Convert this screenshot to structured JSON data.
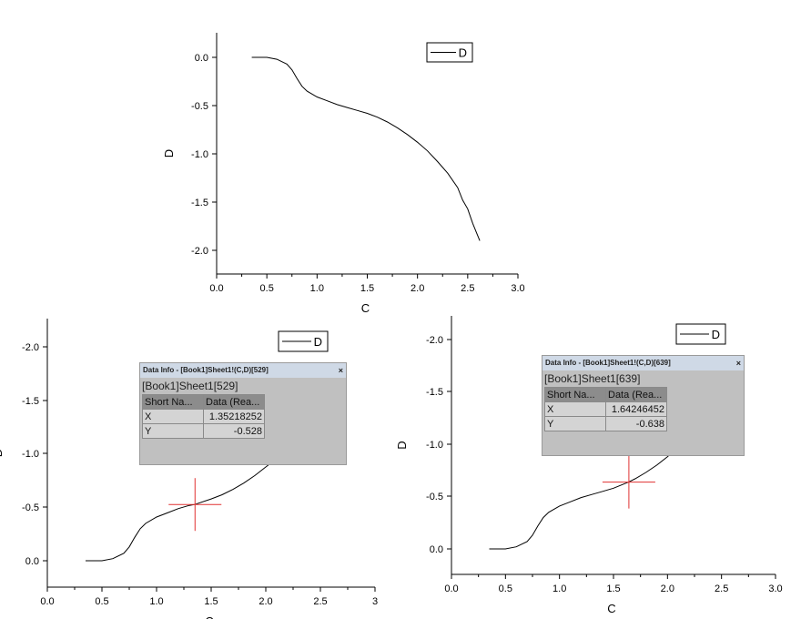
{
  "chart_data": [
    {
      "type": "line",
      "xlabel": "C",
      "ylabel": "D",
      "xlim": [
        0,
        3
      ],
      "ylim": [
        -2.25,
        0.25
      ],
      "xticks": [
        "0.0",
        "0.5",
        "1.0",
        "1.5",
        "2.0",
        "2.5",
        "3.0"
      ],
      "yticks": [
        "0.0",
        "-0.5",
        "-1.0",
        "-1.5",
        "-2.0"
      ],
      "legend": "D",
      "legend_position": "top-right",
      "series": [
        {
          "name": "D",
          "x": [
            0.35,
            0.5,
            0.6,
            0.7,
            0.75,
            0.8,
            0.85,
            0.9,
            1.0,
            1.1,
            1.2,
            1.3,
            1.4,
            1.5,
            1.6,
            1.7,
            1.8,
            1.9,
            2.0,
            2.1,
            2.2,
            2.3,
            2.4,
            2.45,
            2.5,
            2.55,
            2.6,
            2.62
          ],
          "y": [
            0.0,
            0.0,
            -0.02,
            -0.07,
            -0.13,
            -0.22,
            -0.3,
            -0.35,
            -0.41,
            -0.45,
            -0.49,
            -0.52,
            -0.55,
            -0.58,
            -0.62,
            -0.67,
            -0.73,
            -0.8,
            -0.88,
            -0.97,
            -1.08,
            -1.2,
            -1.35,
            -1.48,
            -1.57,
            -1.72,
            -1.85,
            -1.9
          ]
        }
      ]
    },
    {
      "type": "line",
      "xlabel": "C",
      "ylabel": "D",
      "y_reversed": true,
      "xlim": [
        0,
        3
      ],
      "ylim": [
        0.25,
        -2.25
      ],
      "xticks": [
        "0.0",
        "0.5",
        "1.0",
        "1.5",
        "2.0",
        "2.5",
        "3"
      ],
      "yticks": [
        "0.0",
        "-0.5",
        "-1.0",
        "-1.5",
        "-2.0"
      ],
      "legend": "D",
      "legend_position": "top-right",
      "series": [
        {
          "name": "D",
          "x": [
            0.35,
            0.5,
            0.6,
            0.7,
            0.75,
            0.8,
            0.85,
            0.9,
            1.0,
            1.1,
            1.2,
            1.3,
            1.35,
            1.5,
            1.6,
            1.7,
            1.8,
            1.9,
            2.0,
            2.05
          ],
          "y": [
            0.0,
            0.0,
            -0.02,
            -0.07,
            -0.13,
            -0.22,
            -0.3,
            -0.35,
            -0.41,
            -0.45,
            -0.49,
            -0.52,
            -0.528,
            -0.58,
            -0.62,
            -0.67,
            -0.73,
            -0.8,
            -0.88,
            -0.92
          ]
        }
      ],
      "cursor": {
        "x": 1.35218252,
        "y": -0.528
      }
    },
    {
      "type": "line",
      "xlabel": "C",
      "ylabel": "D",
      "y_reversed": true,
      "xlim": [
        0,
        3
      ],
      "ylim": [
        0.25,
        -2.25
      ],
      "xticks": [
        "0.0",
        "0.5",
        "1.0",
        "1.5",
        "2.0",
        "2.5",
        "3.0"
      ],
      "yticks": [
        "0.0",
        "-0.5",
        "-1.0",
        "-1.5",
        "-2.0"
      ],
      "legend": "D",
      "legend_position": "top-right",
      "series": [
        {
          "name": "D",
          "x": [
            0.35,
            0.5,
            0.6,
            0.7,
            0.75,
            0.8,
            0.85,
            0.9,
            1.0,
            1.1,
            1.2,
            1.3,
            1.4,
            1.5,
            1.64,
            1.7,
            1.8,
            1.9,
            2.0,
            2.02
          ],
          "y": [
            0.0,
            0.0,
            -0.02,
            -0.07,
            -0.13,
            -0.22,
            -0.3,
            -0.35,
            -0.41,
            -0.45,
            -0.49,
            -0.52,
            -0.55,
            -0.58,
            -0.638,
            -0.67,
            -0.73,
            -0.8,
            -0.88,
            -0.9
          ]
        }
      ],
      "cursor": {
        "x": 1.64246452,
        "y": -0.638
      }
    }
  ],
  "info_panels": [
    {
      "title": "Data Info - [Book1]Sheet1!(C,D)[529]",
      "close": "×",
      "subtitle": "[Book1]Sheet1[529]",
      "headers": [
        "Short Na...",
        "Data (Rea..."
      ],
      "rows": [
        [
          "X",
          "1.35218252"
        ],
        [
          "Y",
          "-0.528"
        ]
      ]
    },
    {
      "title": "Data Info - [Book1]Sheet1!(C,D)[639]",
      "close": "×",
      "subtitle": "[Book1]Sheet1[639]",
      "headers": [
        "Short Na...",
        "Data (Rea..."
      ],
      "rows": [
        [
          "X",
          "1.64246452"
        ],
        [
          "Y",
          "-0.638"
        ]
      ]
    }
  ]
}
